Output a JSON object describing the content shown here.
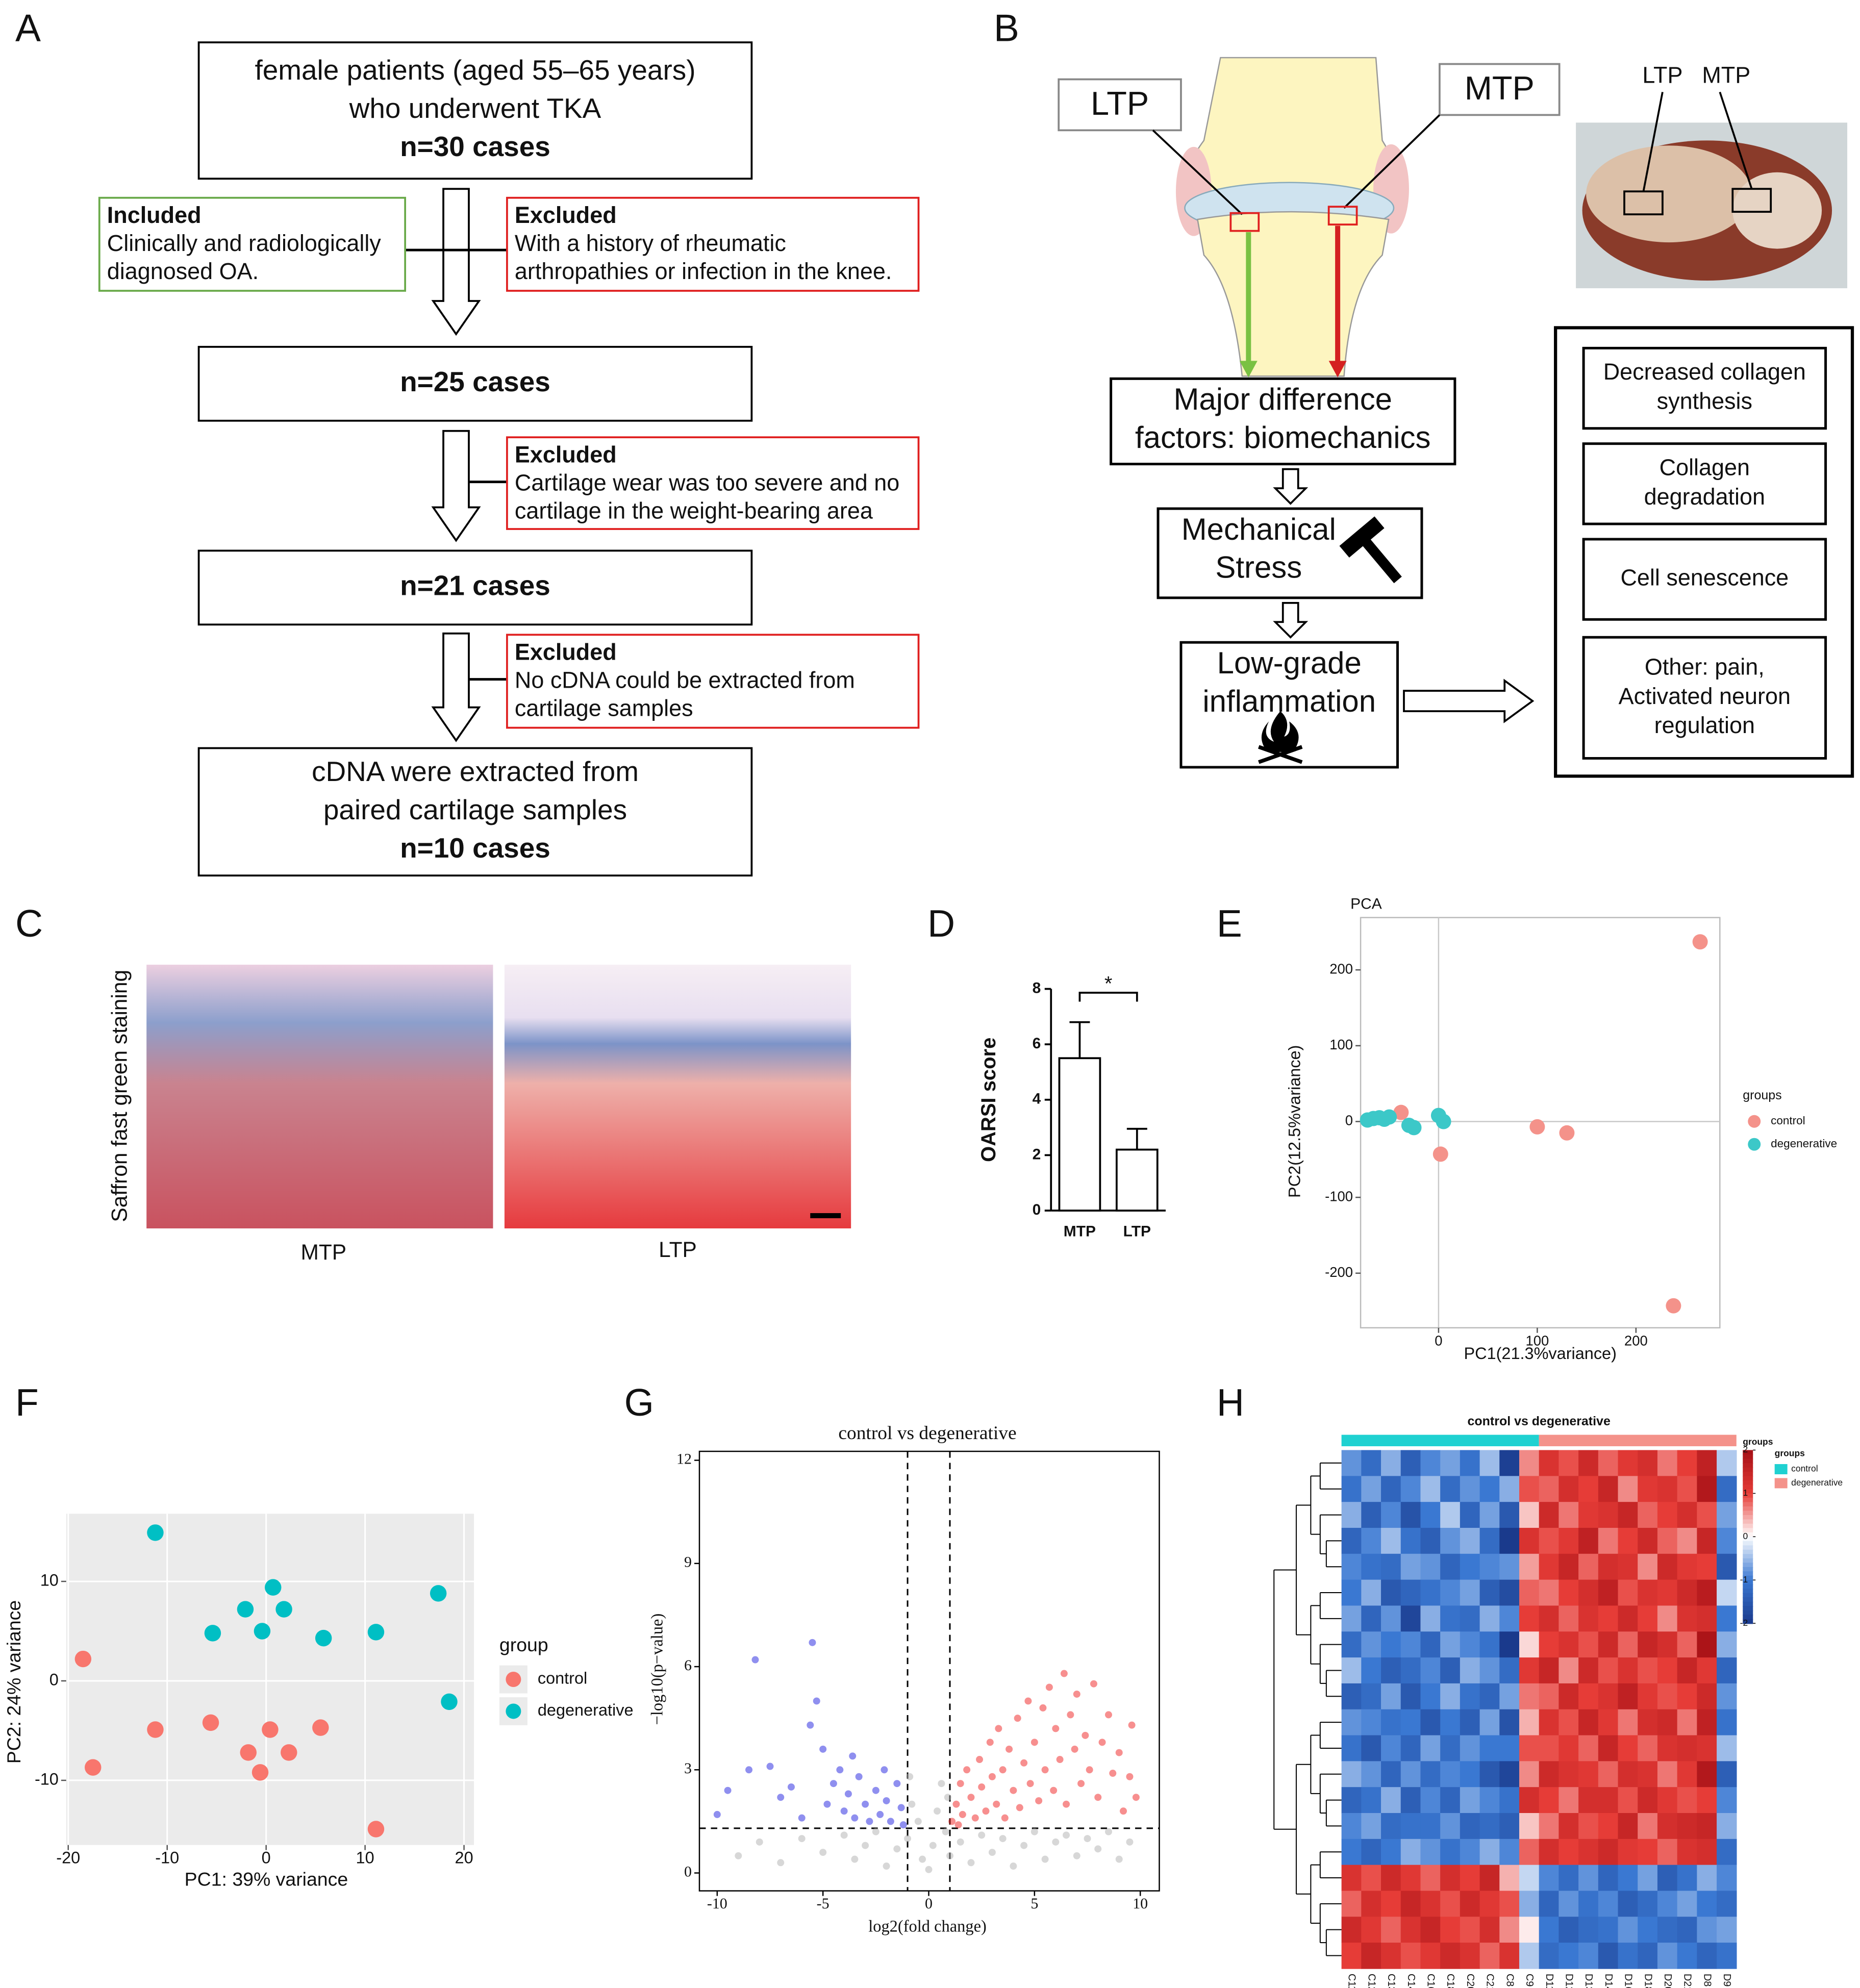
{
  "panel_labels": [
    "A",
    "B",
    "C",
    "D",
    "E",
    "F",
    "G",
    "H"
  ],
  "flowchart": {
    "boxes": [
      {
        "lines": [
          "female patients  (aged 55–65 years)",
          "who underwent TKA"
        ],
        "count": "n=30 cases"
      },
      {
        "lines": [],
        "count": "n=25 cases"
      },
      {
        "lines": [],
        "count": "n=21 cases"
      },
      {
        "lines": [
          "cDNA were extracted from",
          "paired cartilage samples"
        ],
        "count": "n=10 cases"
      }
    ],
    "included": {
      "heading": "Included",
      "lines": [
        "Clinically and radiologically",
        "diagnosed OA."
      ]
    },
    "excluded": [
      {
        "heading": "Excluded",
        "lines": [
          "With a history of rheumatic",
          "arthropathies or infection in the knee."
        ]
      },
      {
        "heading": "Excluded",
        "lines": [
          "Cartilage wear was too severe and no",
          "cartilage in the weight-bearing area"
        ]
      },
      {
        "heading": "Excluded",
        "lines": [
          "No cDNA could be extracted from",
          "cartilage samples"
        ]
      }
    ]
  },
  "diagram": {
    "callouts": [
      "LTP",
      "MTP"
    ],
    "photo_labels": [
      "LTP",
      "MTP"
    ],
    "steps": [
      [
        "Major difference",
        "factors: biomechanics"
      ],
      [
        "Mechanical",
        "Stress"
      ],
      [
        "Low-grade",
        "inflammation"
      ]
    ],
    "outcomes": [
      [
        "Decreased collagen",
        "synthesis"
      ],
      [
        "Collagen",
        "degradation"
      ],
      [
        "Cell senescence"
      ],
      [
        "Other: pain,",
        "Activated neuron",
        "regulation"
      ]
    ]
  },
  "histology": {
    "ylabel": "Saffron fast green staining",
    "images": [
      "MTP",
      "LTP"
    ]
  },
  "chart_data": [
    {
      "type": "bar",
      "ylabel": "OARSI score",
      "categories": [
        "MTP",
        "LTP"
      ],
      "values": [
        5.5,
        2.2
      ],
      "errors": [
        1.3,
        0.75
      ],
      "color": "#ffffff",
      "ylim": [
        0,
        8
      ],
      "yticks": [
        0,
        2,
        4,
        6,
        8
      ],
      "annotation": "*"
    },
    {
      "type": "scatter",
      "title": "PCA",
      "xlabel": "PC1(21.3%variance)",
      "ylabel": "PC2(12.5%variance)",
      "xlim": [
        -79,
        285
      ],
      "ylim": [
        -272,
        269
      ],
      "xticks": [
        0,
        100,
        200
      ],
      "yticks": [
        -200,
        -100,
        0,
        100,
        200
      ],
      "zero_lines": true,
      "grid": false,
      "background": "#ffffff",
      "legend_title": "groups",
      "series": [
        {
          "name": "control",
          "color": "#f4928a",
          "x": [
            265,
            -38,
            2,
            100,
            130,
            238
          ],
          "values": [
            237,
            12,
            -43,
            -7,
            -15,
            -243
          ]
        },
        {
          "name": "degenerative",
          "color": "#3cc8c8",
          "x": [
            -72,
            -66,
            -60,
            -55,
            -50,
            -30,
            -25,
            0,
            5
          ],
          "values": [
            2,
            4,
            5,
            3,
            6,
            -5,
            -8,
            8,
            0
          ]
        }
      ]
    },
    {
      "type": "scatter",
      "xlabel": "PC1: 39% variance",
      "ylabel": "PC2: 24% variance",
      "xlim": [
        -20.2,
        21
      ],
      "ylim": [
        -16.5,
        16.8
      ],
      "xticks": [
        -20,
        -10,
        0,
        10,
        20
      ],
      "yticks": [
        -10,
        0,
        10
      ],
      "grid": true,
      "background": "#ebebeb",
      "legend_title": "group",
      "series": [
        {
          "name": "control",
          "color": "#f8766d",
          "x": [
            -18.5,
            -17.5,
            -11.2,
            -5.6,
            -1.8,
            0.4,
            -0.6,
            2.3,
            5.5,
            11.1
          ],
          "values": [
            2.2,
            -8.7,
            -4.9,
            -4.2,
            -7.2,
            -4.9,
            -9.2,
            -7.2,
            -4.7,
            -14.9
          ]
        },
        {
          "name": "degenerative",
          "color": "#00bfc4",
          "x": [
            -11.2,
            -5.4,
            -2.1,
            -0.4,
            0.7,
            1.8,
            5.8,
            11.1,
            17.4,
            18.5
          ],
          "values": [
            14.9,
            4.8,
            7.2,
            5.0,
            9.4,
            7.2,
            4.3,
            4.9,
            8.8,
            -2.1
          ]
        }
      ]
    },
    {
      "type": "scatter",
      "title": "control vs degenerative",
      "xlabel": "log2(fold change)",
      "ylabel": "−log10(p−value)",
      "xlim": [
        -10.84,
        10.9
      ],
      "ylim": [
        -0.52,
        12.26
      ],
      "xticks": [
        -10,
        -5,
        0,
        5,
        10
      ],
      "yticks": [
        0,
        3,
        6,
        9,
        12
      ],
      "vlines": [
        -1,
        1
      ],
      "hline": 1.3,
      "grid": false,
      "background": "#ffffff",
      "series": [
        {
          "color": "#b0b0b0",
          "x": [
            -9,
            -8,
            -7,
            -6,
            -5,
            -4,
            -3.5,
            -3,
            -2.5,
            -2,
            -1.5,
            -1,
            -0.8,
            -0.5,
            -0.3,
            0,
            0.2,
            0.4,
            0.6,
            0.8,
            1,
            1.5,
            2,
            2.5,
            3,
            3.5,
            4,
            4.5,
            5,
            5.5,
            6,
            6.5,
            7,
            7.5,
            8,
            8.5,
            9,
            9.5,
            -0.9,
            0.9
          ],
          "values": [
            0.5,
            0.9,
            0.3,
            1.0,
            0.6,
            1.1,
            0.4,
            0.8,
            1.2,
            0.2,
            0.7,
            1.0,
            2.0,
            1.5,
            0.4,
            0.1,
            0.8,
            1.8,
            2.6,
            1.2,
            0.5,
            0.9,
            0.3,
            1.1,
            0.6,
            1.0,
            0.2,
            0.8,
            1.2,
            0.4,
            0.9,
            1.1,
            0.5,
            1.0,
            0.7,
            1.2,
            0.4,
            0.9,
            2.8,
            2.2
          ]
        },
        {
          "color": "#2020e0",
          "x": [
            -10,
            -9.5,
            -8.2,
            -8.5,
            -7.5,
            -7,
            -6.5,
            -5.5,
            -5.6,
            -5.3,
            -5,
            -4.8,
            -4.5,
            -4.2,
            -4,
            -3.8,
            -3.5,
            -3.3,
            -3,
            -2.8,
            -2.5,
            -2.3,
            -2,
            -1.8,
            -1.5,
            -1.3,
            -1.2,
            -6,
            -3.6,
            -2.1
          ],
          "values": [
            1.7,
            2.4,
            6.2,
            3.0,
            3.1,
            2.2,
            2.5,
            6.7,
            4.3,
            5.0,
            3.6,
            2.0,
            2.6,
            3.0,
            1.8,
            2.3,
            1.6,
            2.8,
            2.0,
            1.5,
            2.4,
            1.7,
            2.1,
            1.5,
            2.6,
            1.9,
            1.4,
            1.6,
            3.4,
            3.0
          ]
        },
        {
          "color": "#f02020",
          "x": [
            1.1,
            1.3,
            1.5,
            1.6,
            1.8,
            2,
            2.2,
            2.4,
            2.5,
            2.7,
            2.9,
            3,
            3.2,
            3.3,
            3.5,
            3.6,
            3.8,
            4,
            4.2,
            4.3,
            4.5,
            4.7,
            4.8,
            5,
            5.2,
            5.4,
            5.5,
            5.7,
            5.9,
            6,
            6.2,
            6.4,
            6.5,
            6.7,
            6.9,
            7,
            7.2,
            7.4,
            7.6,
            7.8,
            8,
            8.2,
            8.5,
            8.7,
            9,
            9.2,
            9.5,
            9.6,
            9.8,
            1.4
          ],
          "values": [
            1.5,
            2.0,
            2.6,
            1.7,
            3.0,
            2.2,
            1.6,
            3.3,
            2.5,
            1.8,
            3.8,
            2.8,
            2.0,
            4.2,
            3.0,
            1.6,
            3.6,
            2.4,
            4.5,
            1.9,
            3.2,
            5.0,
            2.6,
            3.8,
            2.1,
            4.8,
            3.0,
            5.4,
            2.4,
            4.2,
            3.3,
            5.8,
            2.0,
            4.6,
            3.6,
            5.2,
            2.6,
            4.0,
            3.0,
            5.5,
            2.2,
            3.8,
            4.6,
            2.9,
            3.5,
            1.8,
            2.8,
            4.3,
            2.2,
            1.4
          ]
        }
      ]
    },
    {
      "type": "heatmap",
      "title": "control vs degenerative",
      "columns": [
        "C11",
        "C12",
        "C13",
        "C14",
        "C16",
        "C18",
        "C20",
        "C21",
        "C8",
        "C9",
        "D11",
        "D12",
        "D13",
        "D14",
        "D16",
        "D18",
        "D20",
        "D21",
        "D8",
        "D9"
      ],
      "clim": [
        -2,
        2
      ],
      "colorbar_ticks": [
        2,
        1,
        0,
        -1,
        -2
      ],
      "colorbar_title": "groups",
      "legend_title": "groups",
      "groups": [
        {
          "name": "control",
          "color": "#1fd1d1",
          "count": 10
        },
        {
          "name": "degenerative",
          "color": "#f4928a",
          "count": 10
        }
      ],
      "values": [
        [
          -0.8,
          -1.2,
          -0.6,
          -1.4,
          -0.9,
          -0.7,
          -1.1,
          -0.5,
          -1.9,
          0.6,
          1.2,
          0.9,
          1.4,
          0.8,
          1.1,
          1.3,
          0.7,
          1.0,
          1.6,
          -0.4
        ],
        [
          -1.1,
          -0.7,
          -1.3,
          -0.9,
          -0.5,
          -1.2,
          -0.8,
          -1.0,
          -0.6,
          0.9,
          0.8,
          1.3,
          1.0,
          1.5,
          0.6,
          1.1,
          1.2,
          0.9,
          1.8,
          -1.2
        ],
        [
          -0.6,
          -1.4,
          -0.9,
          -1.6,
          -1.0,
          -0.4,
          -1.3,
          -0.7,
          -1.5,
          0.3,
          1.4,
          0.7,
          1.1,
          1.2,
          1.5,
          0.8,
          1.0,
          1.3,
          0.9,
          -0.7
        ],
        [
          -1.3,
          -0.9,
          -0.5,
          -1.1,
          -1.4,
          -0.8,
          -0.6,
          -1.2,
          -2.0,
          1.2,
          0.9,
          1.1,
          1.6,
          0.7,
          1.0,
          1.4,
          0.8,
          0.6,
          1.5,
          -0.9
        ],
        [
          -0.9,
          -1.1,
          -1.2,
          -0.7,
          -0.8,
          -1.3,
          -1.0,
          -0.9,
          -0.8,
          0.5,
          1.1,
          1.5,
          0.8,
          1.3,
          1.2,
          0.6,
          1.4,
          1.1,
          1.0,
          -1.5
        ],
        [
          -1.0,
          -0.6,
          -1.5,
          -1.3,
          -1.1,
          -0.9,
          -0.7,
          -1.4,
          -1.7,
          0.8,
          0.7,
          1.0,
          1.3,
          1.6,
          0.9,
          1.2,
          1.1,
          1.4,
          1.7,
          -0.3
        ],
        [
          -0.7,
          -1.3,
          -0.8,
          -1.8,
          -0.6,
          -1.1,
          -1.2,
          -0.6,
          -0.9,
          1.0,
          1.3,
          0.8,
          1.2,
          1.0,
          1.4,
          1.0,
          0.6,
          1.2,
          1.3,
          -1.0
        ],
        [
          -1.2,
          -0.8,
          -1.0,
          -0.9,
          -1.3,
          -0.7,
          -0.9,
          -1.1,
          -2.0,
          0.2,
          1.0,
          1.2,
          0.9,
          1.4,
          0.8,
          1.5,
          1.3,
          0.8,
          1.9,
          -0.6
        ],
        [
          -0.5,
          -1.0,
          -1.4,
          -1.2,
          -0.9,
          -1.4,
          -0.6,
          -0.8,
          -1.2,
          1.1,
          1.5,
          0.6,
          1.4,
          0.9,
          1.2,
          0.9,
          1.0,
          1.5,
          1.1,
          -1.3
        ],
        [
          -1.4,
          -1.2,
          -0.7,
          -1.5,
          -1.0,
          -0.6,
          -1.1,
          -1.3,
          -0.7,
          0.7,
          0.8,
          1.4,
          1.0,
          1.2,
          1.6,
          1.1,
          0.9,
          1.0,
          1.4,
          -0.8
        ],
        [
          -0.8,
          -0.9,
          -1.1,
          -1.0,
          -1.5,
          -1.0,
          -1.4,
          -0.7,
          -1.6,
          0.4,
          1.2,
          0.9,
          1.5,
          1.1,
          0.7,
          1.3,
          1.4,
          0.7,
          1.6,
          -1.1
        ],
        [
          -1.1,
          -1.5,
          -0.9,
          -1.3,
          -0.7,
          -1.2,
          -0.8,
          -1.0,
          -1.0,
          0.9,
          0.9,
          1.1,
          0.8,
          1.5,
          1.0,
          0.8,
          1.2,
          1.3,
          1.2,
          -0.5
        ],
        [
          -0.6,
          -0.8,
          -1.3,
          -0.8,
          -1.2,
          -0.9,
          -1.0,
          -1.5,
          -1.8,
          0.6,
          1.4,
          1.2,
          1.1,
          0.8,
          1.3,
          1.2,
          0.7,
          1.1,
          1.8,
          -1.4
        ],
        [
          -1.3,
          -1.1,
          -0.6,
          -1.4,
          -0.9,
          -1.3,
          -0.7,
          -0.9,
          -1.1,
          1.3,
          1.0,
          0.7,
          1.3,
          1.3,
          0.9,
          1.4,
          1.1,
          0.9,
          1.0,
          -0.9
        ],
        [
          -0.9,
          -0.7,
          -1.2,
          -1.1,
          -1.1,
          -0.8,
          -1.3,
          -1.2,
          -1.4,
          0.3,
          0.7,
          1.3,
          0.9,
          1.0,
          1.5,
          0.7,
          1.3,
          1.4,
          1.5,
          -0.6
        ],
        [
          -1.0,
          -1.3,
          -1.0,
          -0.6,
          -0.8,
          -1.1,
          -0.9,
          -0.6,
          -0.9,
          0.8,
          1.3,
          1.0,
          1.2,
          1.4,
          1.1,
          1.0,
          0.8,
          1.2,
          1.3,
          -1.2
        ],
        [
          1.2,
          0.9,
          1.4,
          1.1,
          0.8,
          1.3,
          1.0,
          1.5,
          0.4,
          -0.3,
          -0.9,
          -1.2,
          -0.8,
          -1.3,
          -1.0,
          -0.7,
          -1.4,
          -1.1,
          -0.6,
          -0.9
        ],
        [
          0.8,
          1.3,
          1.0,
          1.5,
          1.2,
          0.9,
          1.4,
          1.1,
          0.9,
          -0.6,
          -1.3,
          -0.8,
          -1.1,
          -0.9,
          -1.4,
          -1.2,
          -0.9,
          -0.7,
          -1.0,
          -1.2
        ],
        [
          1.4,
          1.1,
          0.8,
          1.2,
          1.5,
          1.0,
          0.9,
          1.3,
          0.6,
          0.1,
          -1.0,
          -1.4,
          -1.2,
          -1.1,
          -0.8,
          -1.0,
          -1.2,
          -1.3,
          -0.8,
          -0.7
        ],
        [
          1.0,
          1.5,
          1.2,
          0.9,
          1.1,
          1.4,
          1.2,
          0.8,
          1.2,
          -0.4,
          -1.2,
          -1.0,
          -0.9,
          -1.5,
          -1.1,
          -1.3,
          -0.8,
          -1.0,
          -1.3,
          -1.1
        ]
      ]
    }
  ]
}
